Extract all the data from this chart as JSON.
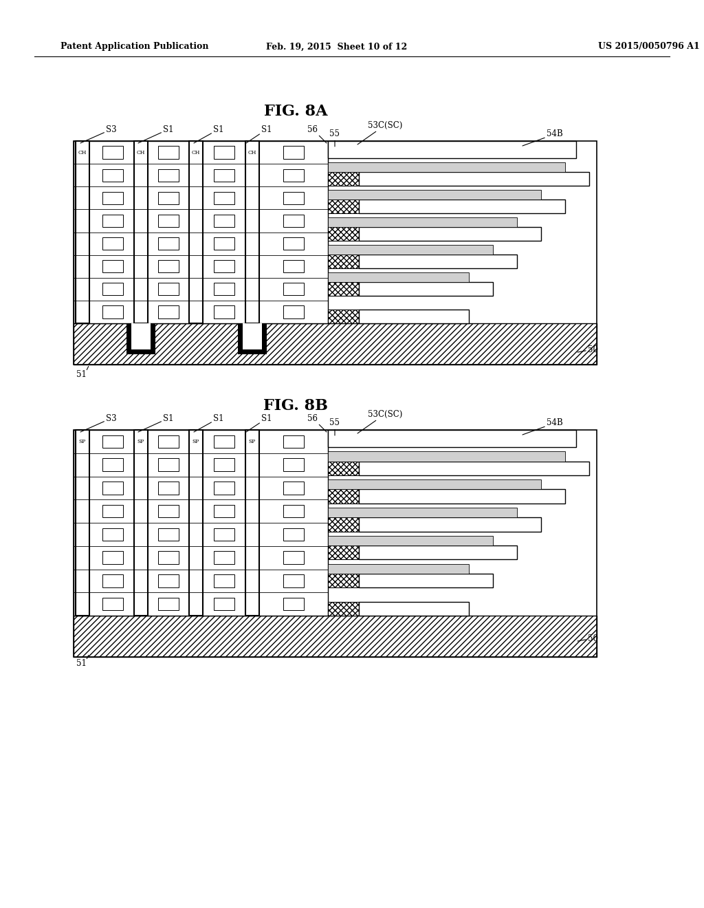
{
  "bg_color": "#ffffff",
  "header_left": "Patent Application Publication",
  "header_mid": "Feb. 19, 2015  Sheet 10 of 12",
  "header_right": "US 2015/0050796 A1",
  "fig8a_title": "FIG. 8A",
  "fig8b_title": "FIG. 8B",
  "lw": 1.0
}
